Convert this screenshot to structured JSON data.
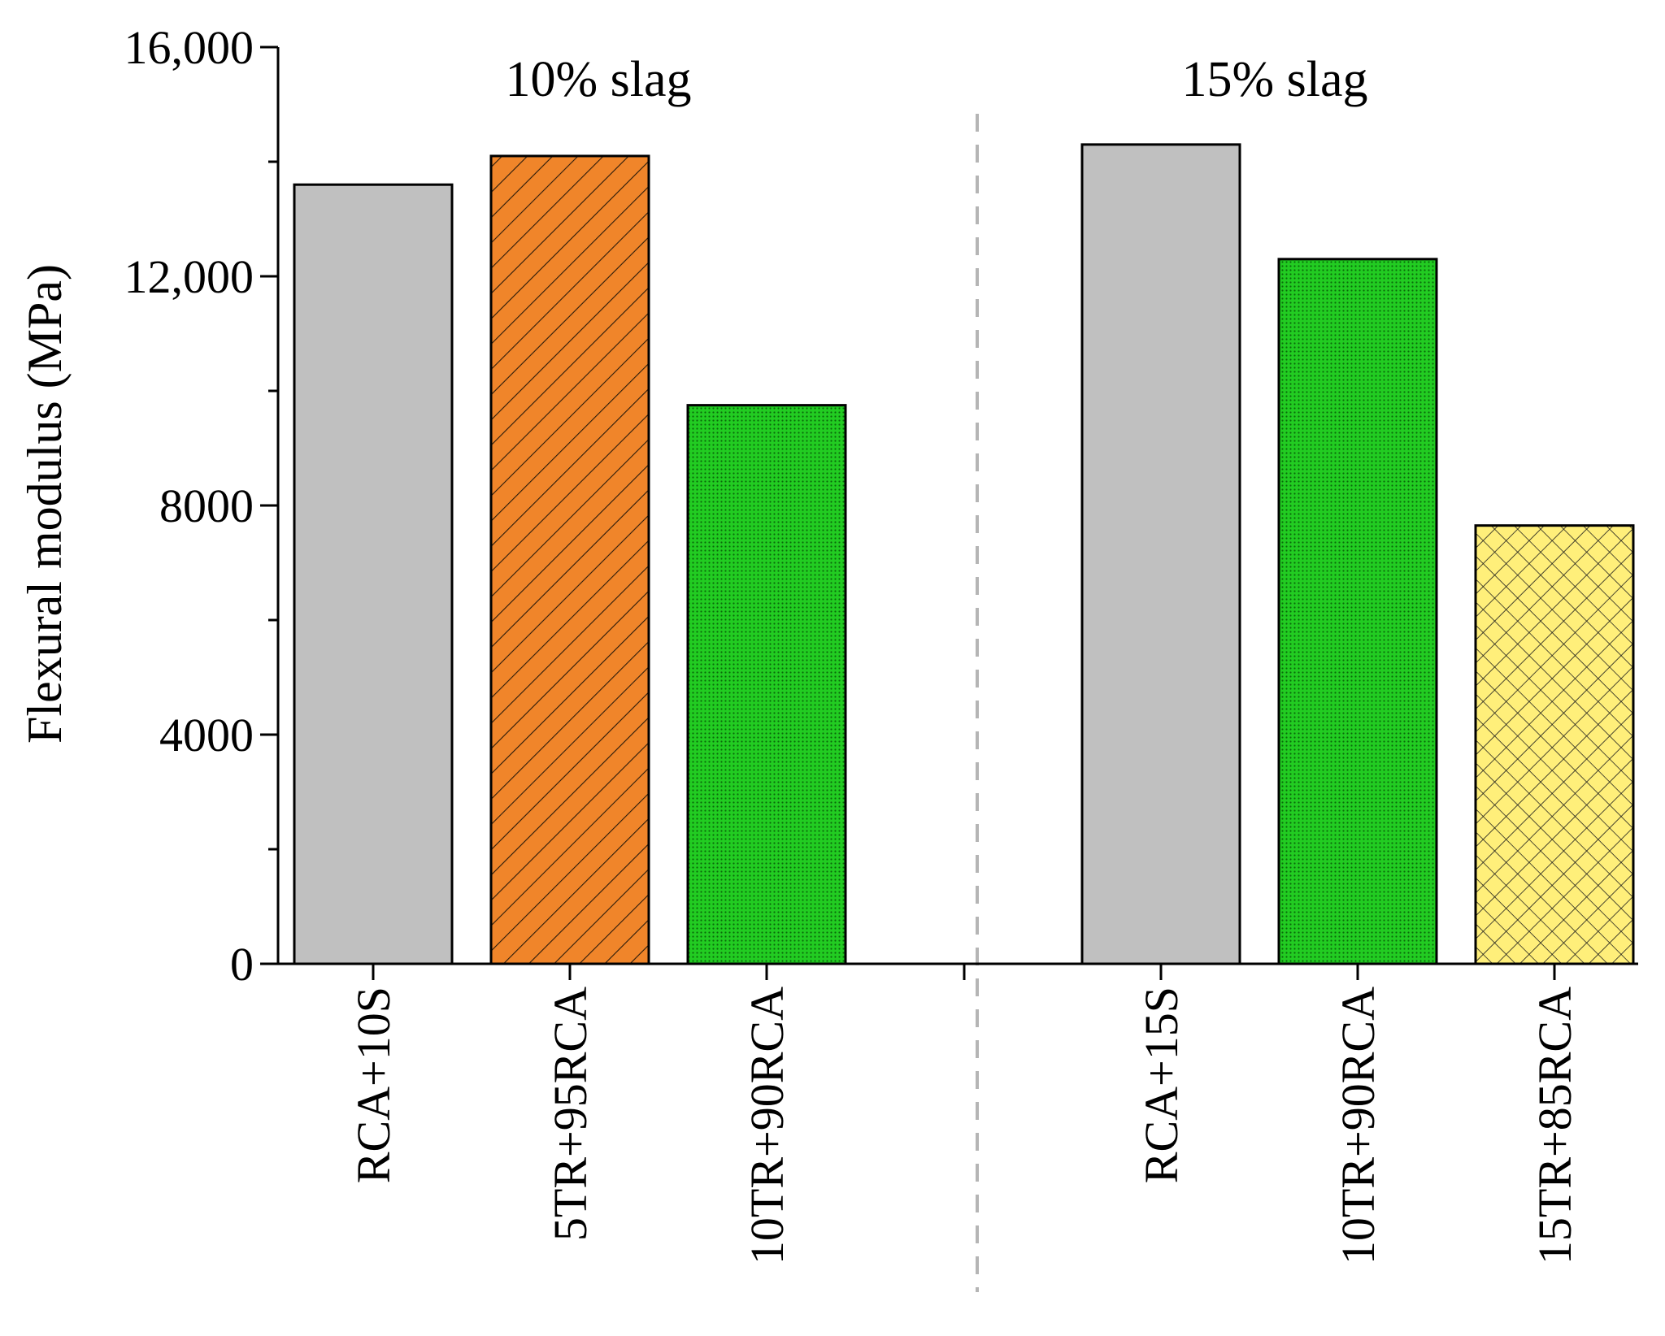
{
  "chart_data": {
    "type": "bar",
    "categories": [
      "RCA+10S",
      "5TR+95RCA",
      "10TR+90RCA",
      "RCA+15S",
      "10TR+90RCA",
      "15TR+85RCA"
    ],
    "values": [
      13600,
      14100,
      9750,
      14300,
      12300,
      7650
    ],
    "groups": [
      {
        "label": "10% slag",
        "members": [
          0,
          1,
          2
        ]
      },
      {
        "label": "15% slag",
        "members": [
          3,
          4,
          5
        ]
      }
    ],
    "title": "",
    "xlabel": "",
    "ylabel": "Flexural modulus (MPa)",
    "ylim": [
      0,
      16000
    ],
    "yticks": [
      {
        "value": 0,
        "label": "0"
      },
      {
        "value": 4000,
        "label": "4000"
      },
      {
        "value": 8000,
        "label": "8000"
      },
      {
        "value": 12000,
        "label": "12,000"
      },
      {
        "value": 16000,
        "label": "16,000"
      }
    ],
    "minor_tick_step": 2000,
    "grid": false,
    "bar_styles": [
      {
        "fill": "#c0c0c0",
        "pattern": "none"
      },
      {
        "fill": "#f0852a",
        "pattern": "diagonal"
      },
      {
        "fill": "#22cc22",
        "pattern": "dots"
      },
      {
        "fill": "#c0c0c0",
        "pattern": "none"
      },
      {
        "fill": "#22cc22",
        "pattern": "dots"
      },
      {
        "fill": "#ffef7a",
        "pattern": "crosshatch"
      }
    ],
    "group_separator": {
      "style": "dashed",
      "color": "#b5b5b5"
    }
  }
}
